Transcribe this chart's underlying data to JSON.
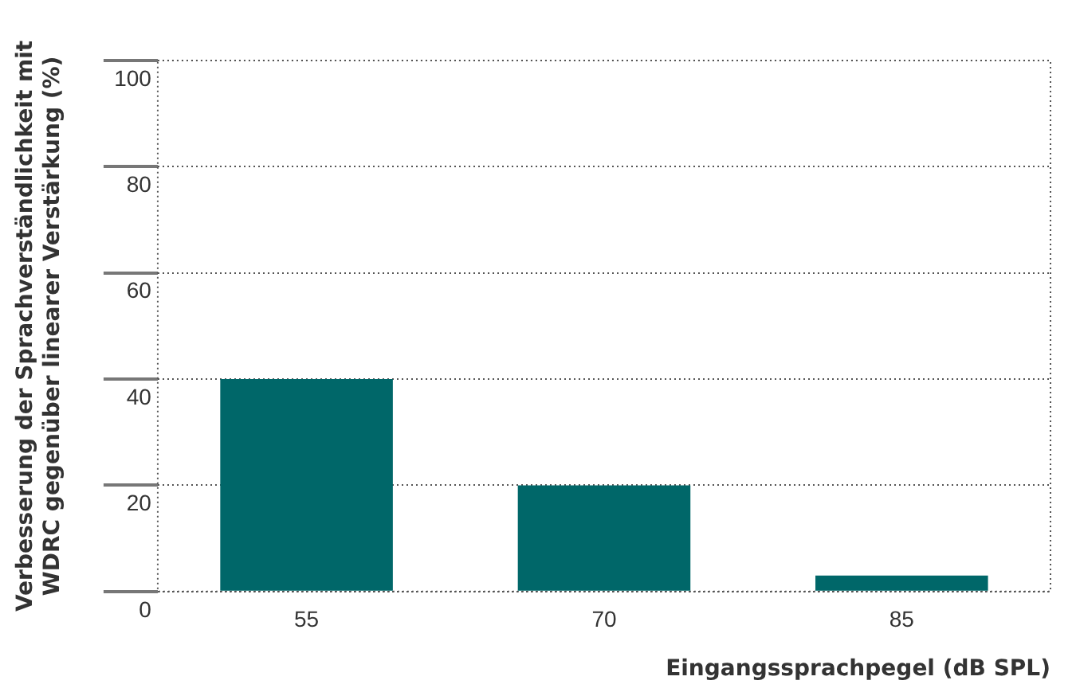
{
  "chart_data": {
    "type": "bar",
    "xlabel": "Eingangssprachpegel (dB SPL)",
    "ylabel": "Verbesserung der Sprachverständlichkeit mit WDRC gegenüber linearer Verstärkung (%)",
    "categories": [
      "55",
      "70",
      "85"
    ],
    "values": [
      40,
      20,
      3
    ],
    "color": "#006769",
    "ylim": [
      0,
      100
    ],
    "yticks": [
      0,
      20,
      40,
      60,
      80,
      100
    ],
    "grid": "y",
    "legend": false
  }
}
